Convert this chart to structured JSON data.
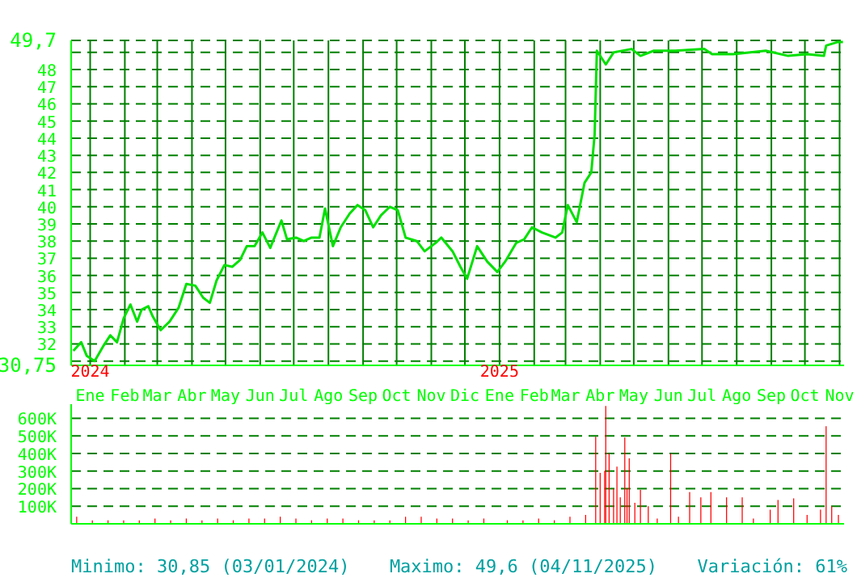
{
  "chart_data": [
    {
      "type": "line",
      "color": "#00e000",
      "x": [
        "2023-12-17",
        "2023-12-24",
        "2023-12-29",
        "2024-01-05",
        "2024-01-13",
        "2024-01-19",
        "2024-01-25",
        "2024-01-31",
        "2024-02-06",
        "2024-02-12",
        "2024-02-16",
        "2024-02-22",
        "2024-02-26",
        "2024-03-04",
        "2024-03-12",
        "2024-03-20",
        "2024-03-27",
        "2024-04-04",
        "2024-04-11",
        "2024-04-17",
        "2024-04-23",
        "2024-04-30",
        "2024-05-07",
        "2024-05-14",
        "2024-05-20",
        "2024-05-27",
        "2024-06-03",
        "2024-06-10",
        "2024-06-20",
        "2024-06-25",
        "2024-07-03",
        "2024-07-10",
        "2024-07-17",
        "2024-07-24",
        "2024-07-29",
        "2024-08-05",
        "2024-08-12",
        "2024-08-20",
        "2024-08-27",
        "2024-09-03",
        "2024-09-10",
        "2024-09-17",
        "2024-09-25",
        "2024-10-02",
        "2024-10-09",
        "2024-10-19",
        "2024-10-26",
        "2024-11-05",
        "2024-11-10",
        "2024-11-20",
        "2024-11-27",
        "2024-12-03",
        "2024-12-12",
        "2024-12-21",
        "2024-12-30",
        "2025-01-06",
        "2025-01-16",
        "2025-01-23",
        "2025-01-30",
        "2025-02-08",
        "2025-02-20",
        "2025-02-26",
        "2025-03-03",
        "2025-03-11",
        "2025-03-18",
        "2025-03-24",
        "2025-03-27",
        "2025-03-29",
        "2025-04-06",
        "2025-04-13",
        "2025-04-29",
        "2025-05-07",
        "2025-05-19",
        "2025-06-07",
        "2025-07-03",
        "2025-07-10",
        "2025-07-29",
        "2025-08-27",
        "2025-09-16",
        "2025-10-03",
        "2025-10-18",
        "2025-10-20",
        "2025-10-30",
        "2025-11-04"
      ],
      "values": [
        31.6,
        32.1,
        31.3,
        31.0,
        31.9,
        32.5,
        32.1,
        33.5,
        34.3,
        33.3,
        34.0,
        34.2,
        33.6,
        32.8,
        33.3,
        34.1,
        35.5,
        35.4,
        34.7,
        34.4,
        35.7,
        36.6,
        36.5,
        36.9,
        37.7,
        37.7,
        38.5,
        37.6,
        39.2,
        38.1,
        38.2,
        38.0,
        38.2,
        38.2,
        39.9,
        37.7,
        38.8,
        39.6,
        40.1,
        39.8,
        38.8,
        39.5,
        40.0,
        39.8,
        38.2,
        38.0,
        37.4,
        37.9,
        38.2,
        37.4,
        36.5,
        35.8,
        37.7,
        36.8,
        36.2,
        36.8,
        37.9,
        38.1,
        38.8,
        38.5,
        38.2,
        38.5,
        40.1,
        39.1,
        41.4,
        42.0,
        44.2,
        49.1,
        48.3,
        49.0,
        49.2,
        48.8,
        49.1,
        49.1,
        49.2,
        48.9,
        48.9,
        49.1,
        48.8,
        48.9,
        48.8,
        49.4,
        49.6,
        49.6
      ],
      "xlim": [
        "2023-12-15",
        "2025-11-05"
      ],
      "xticks": [
        {
          "value": "2024-01-01",
          "label": "Ene"
        },
        {
          "value": "2024-02-01",
          "label": "Feb"
        },
        {
          "value": "2024-03-01",
          "label": "Mar"
        },
        {
          "value": "2024-04-01",
          "label": "Abr"
        },
        {
          "value": "2024-05-01",
          "label": "May"
        },
        {
          "value": "2024-06-01",
          "label": "Jun"
        },
        {
          "value": "2024-07-01",
          "label": "Jul"
        },
        {
          "value": "2024-08-01",
          "label": "Ago"
        },
        {
          "value": "2024-09-01",
          "label": "Sep"
        },
        {
          "value": "2024-10-01",
          "label": "Oct"
        },
        {
          "value": "2024-11-01",
          "label": "Nov"
        },
        {
          "value": "2024-12-01",
          "label": "Dic"
        },
        {
          "value": "2025-01-01",
          "label": "Ene"
        },
        {
          "value": "2025-02-01",
          "label": "Feb"
        },
        {
          "value": "2025-03-01",
          "label": "Mar"
        },
        {
          "value": "2025-04-01",
          "label": "Abr"
        },
        {
          "value": "2025-05-01",
          "label": "May"
        },
        {
          "value": "2025-06-01",
          "label": "Jun"
        },
        {
          "value": "2025-07-01",
          "label": "Jul"
        },
        {
          "value": "2025-08-01",
          "label": "Ago"
        },
        {
          "value": "2025-09-01",
          "label": "Sep"
        },
        {
          "value": "2025-10-01",
          "label": "Oct"
        },
        {
          "value": "2025-11-01",
          "label": "Nov"
        }
      ],
      "ylim": [
        30.75,
        49.7
      ],
      "yticks": [
        {
          "value": 30.75,
          "label": "30,75"
        },
        {
          "value": 31,
          "label": null
        },
        32,
        33,
        34,
        35,
        36,
        37,
        38,
        39,
        40,
        41,
        42,
        43,
        44,
        45,
        46,
        47,
        48,
        {
          "value": 49,
          "label": null
        },
        {
          "value": 49.7,
          "label": "49,7"
        }
      ],
      "grid": true,
      "annotations": [
        "2024",
        "2025"
      ]
    },
    {
      "type": "bar",
      "color": "#ff0000",
      "x": [
        "2023-12-20",
        "2024-01-03",
        "2024-01-17",
        "2024-01-31",
        "2024-02-14",
        "2024-02-28",
        "2024-03-13",
        "2024-03-27",
        "2024-04-10",
        "2024-04-24",
        "2024-05-08",
        "2024-05-22",
        "2024-06-05",
        "2024-06-19",
        "2024-07-03",
        "2024-07-17",
        "2024-07-31",
        "2024-08-14",
        "2024-08-28",
        "2024-09-11",
        "2024-09-25",
        "2024-10-09",
        "2024-10-23",
        "2024-11-06",
        "2024-11-20",
        "2024-12-04",
        "2024-12-18",
        "2025-01-08",
        "2025-01-22",
        "2025-02-05",
        "2025-02-19",
        "2025-03-05",
        "2025-03-19",
        "2025-03-28",
        "2025-04-01",
        "2025-04-05",
        "2025-04-06",
        "2025-04-09",
        "2025-04-13",
        "2025-04-16",
        "2025-04-19",
        "2025-04-23",
        "2025-04-25",
        "2025-04-27",
        "2025-05-02",
        "2025-05-07",
        "2025-05-14",
        "2025-05-22",
        "2025-06-03",
        "2025-06-10",
        "2025-06-20",
        "2025-06-30",
        "2025-07-09",
        "2025-07-23",
        "2025-08-06",
        "2025-08-16",
        "2025-08-31",
        "2025-09-07",
        "2025-09-21",
        "2025-10-03",
        "2025-10-15",
        "2025-10-20",
        "2025-10-25",
        "2025-10-31"
      ],
      "values": [
        40000,
        20000,
        20000,
        20000,
        20000,
        30000,
        20000,
        30000,
        20000,
        30000,
        20000,
        30000,
        30000,
        40000,
        30000,
        20000,
        30000,
        30000,
        20000,
        20000,
        20000,
        40000,
        40000,
        30000,
        30000,
        20000,
        30000,
        20000,
        20000,
        30000,
        20000,
        40000,
        50000,
        495000,
        290000,
        300000,
        670000,
        400000,
        200000,
        325000,
        150000,
        490000,
        200000,
        372000,
        120000,
        193000,
        100000,
        30000,
        400000,
        40000,
        180000,
        150000,
        180000,
        150000,
        150000,
        30000,
        80000,
        135000,
        145000,
        50000,
        80000,
        555000,
        100000,
        50000
      ],
      "xlim": [
        "2023-12-15",
        "2025-11-05"
      ],
      "xticks": [
        {
          "value": "2024-01-01",
          "label": null
        },
        {
          "value": "2024-02-01",
          "label": null
        },
        {
          "value": "2024-03-01",
          "label": null
        },
        {
          "value": "2024-04-01",
          "label": null
        },
        {
          "value": "2024-05-01",
          "label": null
        },
        {
          "value": "2024-06-01",
          "label": null
        },
        {
          "value": "2024-07-01",
          "label": null
        },
        {
          "value": "2024-08-01",
          "label": null
        },
        {
          "value": "2024-09-01",
          "label": null
        },
        {
          "value": "2024-10-01",
          "label": null
        },
        {
          "value": "2024-11-01",
          "label": null
        },
        {
          "value": "2024-12-01",
          "label": null
        },
        {
          "value": "2025-01-01",
          "label": null
        },
        {
          "value": "2025-02-01",
          "label": null
        },
        {
          "value": "2025-03-01",
          "label": null
        },
        {
          "value": "2025-04-01",
          "label": null
        },
        {
          "value": "2025-05-01",
          "label": null
        },
        {
          "value": "2025-06-01",
          "label": null
        },
        {
          "value": "2025-07-01",
          "label": null
        },
        {
          "value": "2025-08-01",
          "label": null
        },
        {
          "value": "2025-09-01",
          "label": null
        },
        {
          "value": "2025-10-01",
          "label": null
        },
        {
          "value": "2025-11-01",
          "label": null
        }
      ],
      "ylim": [
        0,
        680000
      ],
      "yticks": [
        {
          "value": 100000,
          "label": "100K"
        },
        {
          "value": 200000,
          "label": "200K"
        },
        {
          "value": 300000,
          "label": "300K"
        },
        {
          "value": 400000,
          "label": "400K"
        },
        {
          "value": 500000,
          "label": "500K"
        },
        {
          "value": 600000,
          "label": "600K"
        }
      ],
      "grid": true,
      "tick_labels": "y",
      "annotations": [
        "Minimo: 30,85 (03/01/2024)",
        "Maximo: 49,6 (04/11/2025)",
        "Variación: 61%"
      ]
    }
  ]
}
